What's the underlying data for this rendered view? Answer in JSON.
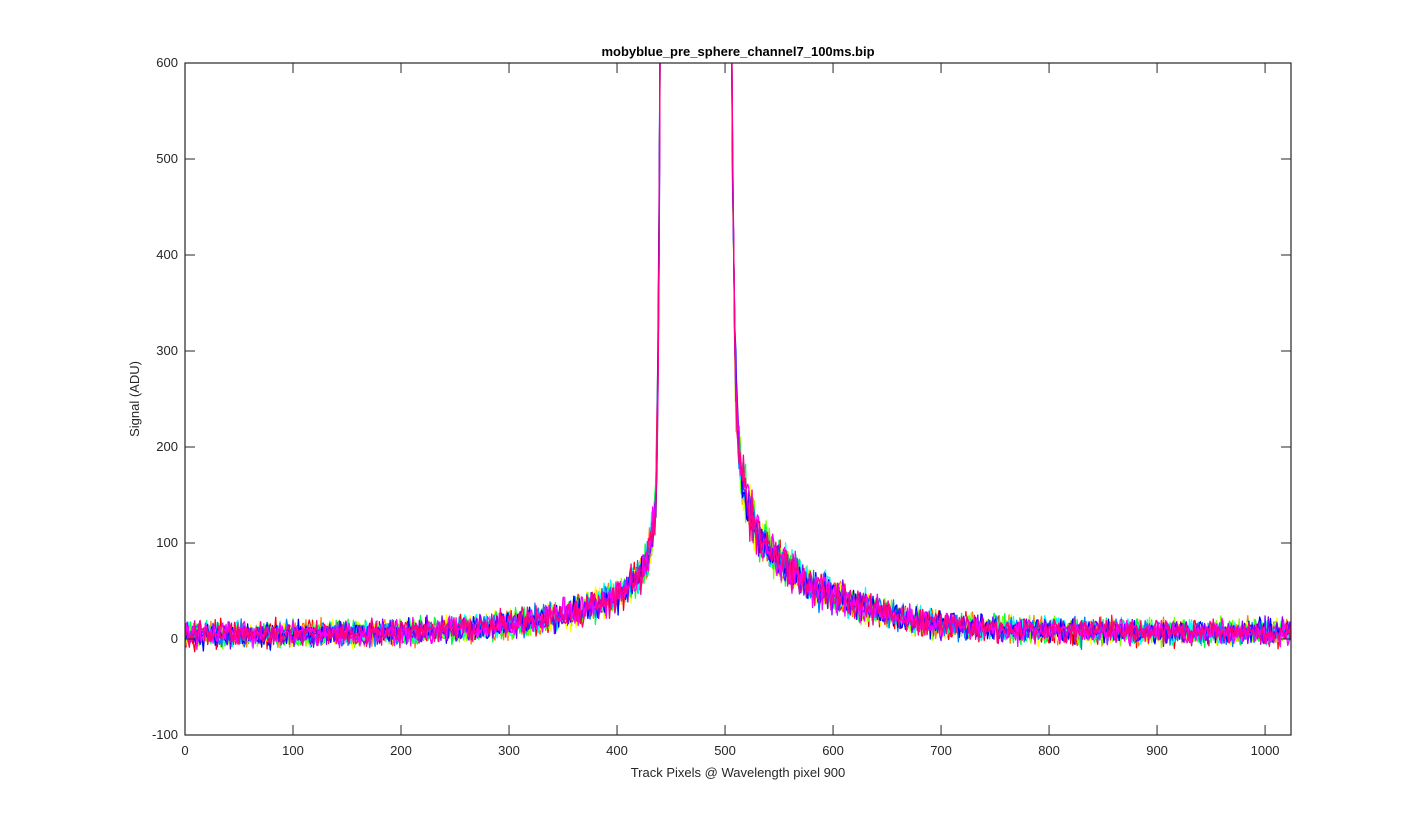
{
  "chart_data": {
    "type": "line",
    "title": "mobyblue_pre_sphere_channel7_100ms.bip",
    "xlabel": "Track Pixels @ Wavelength pixel 900",
    "ylabel": "Signal (ADU)",
    "xlim": [
      0,
      1024
    ],
    "ylim": [
      -100,
      600
    ],
    "xticks": [
      0,
      100,
      200,
      300,
      400,
      500,
      600,
      700,
      800,
      900,
      1000
    ],
    "yticks": [
      -100,
      0,
      100,
      200,
      300,
      400,
      500,
      600
    ],
    "grid": false,
    "legend": "none",
    "peak_left_x": 440,
    "peak_right_x": 506,
    "baseline": 5,
    "noise_amplitude": 12,
    "shape_profile": [
      {
        "x": 0,
        "y": 5
      },
      {
        "x": 100,
        "y": 5
      },
      {
        "x": 200,
        "y": 7
      },
      {
        "x": 300,
        "y": 15
      },
      {
        "x": 350,
        "y": 25
      },
      {
        "x": 400,
        "y": 45
      },
      {
        "x": 420,
        "y": 65
      },
      {
        "x": 430,
        "y": 90
      },
      {
        "x": 436,
        "y": 140
      },
      {
        "x": 440,
        "y": 600
      },
      {
        "x": 506,
        "y": 600
      },
      {
        "x": 510,
        "y": 250
      },
      {
        "x": 515,
        "y": 170
      },
      {
        "x": 530,
        "y": 110
      },
      {
        "x": 550,
        "y": 80
      },
      {
        "x": 600,
        "y": 45
      },
      {
        "x": 700,
        "y": 15
      },
      {
        "x": 800,
        "y": 8
      },
      {
        "x": 1024,
        "y": 7
      }
    ],
    "series": [
      {
        "color": "#ff0000"
      },
      {
        "color": "#ff8000"
      },
      {
        "color": "#ffff00"
      },
      {
        "color": "#80ff00"
      },
      {
        "color": "#00ff40"
      },
      {
        "color": "#00ffff"
      },
      {
        "color": "#0080ff"
      },
      {
        "color": "#0000ff"
      },
      {
        "color": "#8000ff"
      },
      {
        "color": "#ff00ff"
      },
      {
        "color": "#ff0080"
      }
    ]
  }
}
